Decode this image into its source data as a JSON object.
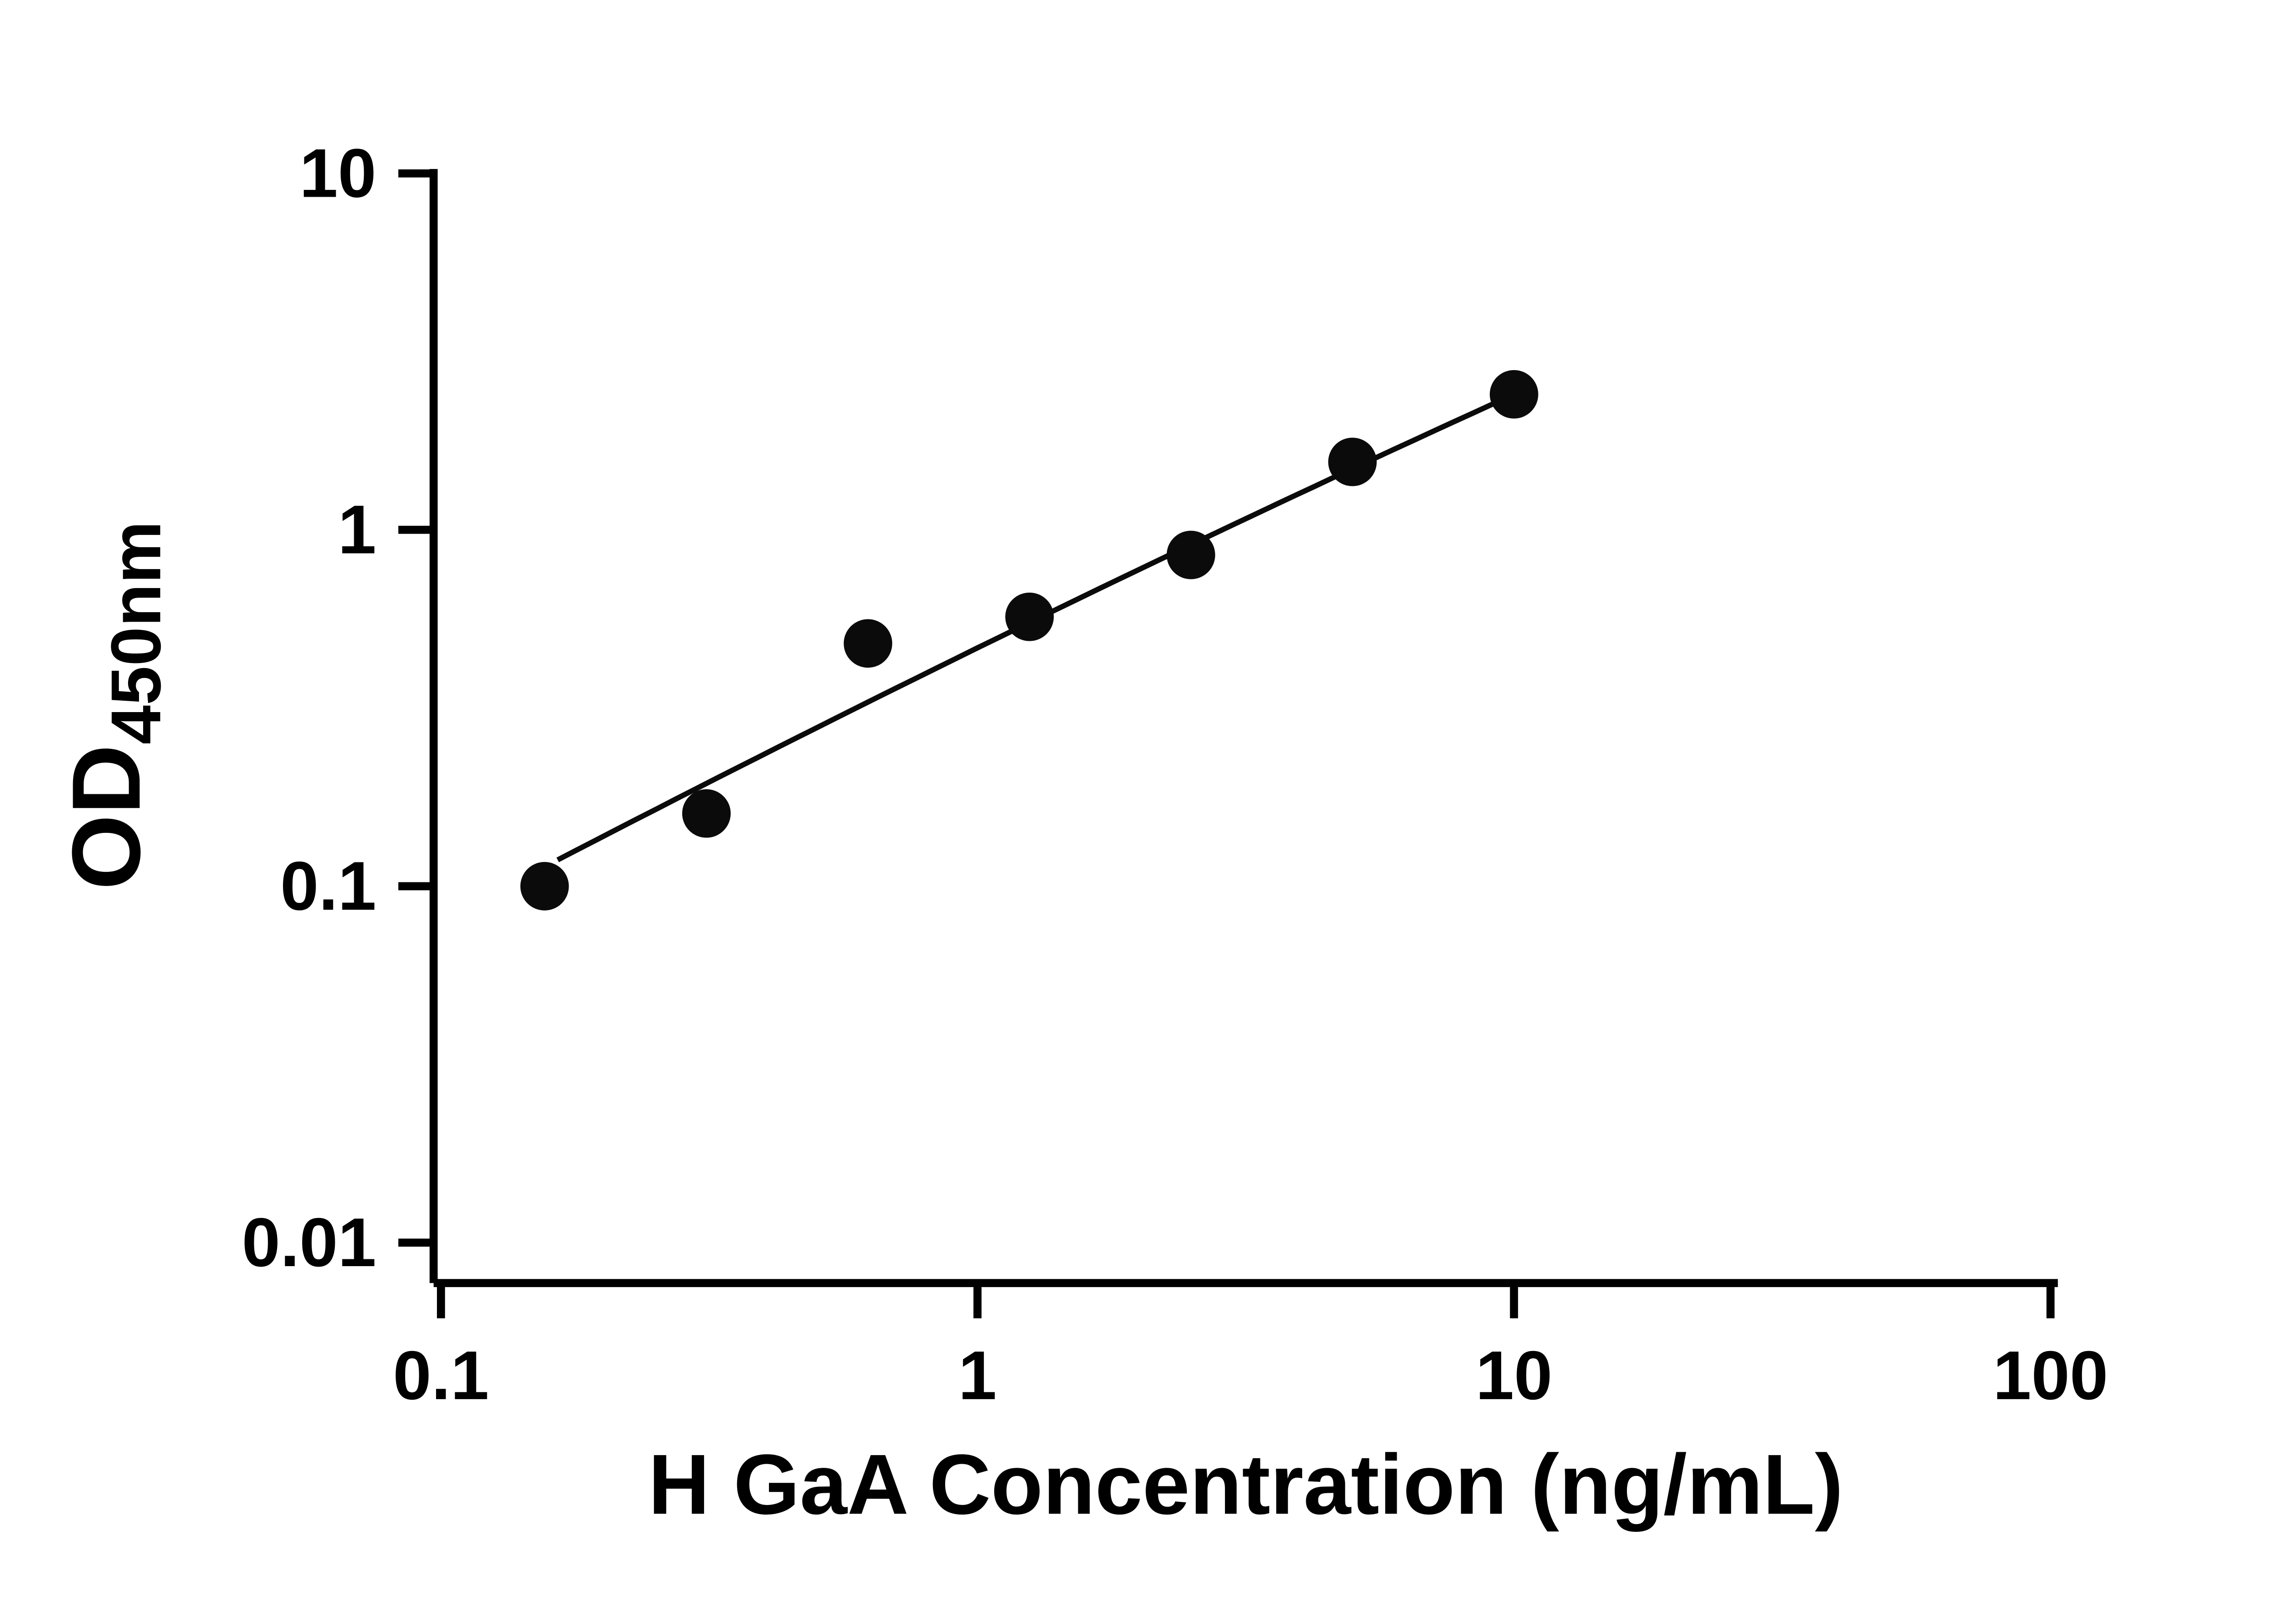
{
  "figure": {
    "background": "#ffffff"
  },
  "chart_data": {
    "type": "scatter",
    "title": "",
    "xlabel": "H GaA Concentration (ng/mL)",
    "ylabel": "OD",
    "ylabel_subscript": "450nm",
    "x_scale": "log",
    "y_scale": "log",
    "xlim": [
      0.1,
      100
    ],
    "ylim": [
      0.01,
      10
    ],
    "x_ticks": [
      0.1,
      1,
      10,
      100
    ],
    "x_tick_labels": [
      "0.1",
      "1",
      "10",
      "100"
    ],
    "y_ticks": [
      0.01,
      0.1,
      1,
      10
    ],
    "y_tick_labels": [
      "0.01",
      "0.1",
      "1",
      "10"
    ],
    "grid": false,
    "legend_position": "none",
    "marker_color": "#0b0b0b",
    "line_color": "#0b0b0b",
    "axis_color": "#000000",
    "points": [
      {
        "x": 0.156,
        "y": 0.1
      },
      {
        "x": 0.3125,
        "y": 0.16
      },
      {
        "x": 0.625,
        "y": 0.48
      },
      {
        "x": 1.25,
        "y": 0.57
      },
      {
        "x": 2.5,
        "y": 0.85
      },
      {
        "x": 5,
        "y": 1.55
      },
      {
        "x": 10,
        "y": 2.4
      }
    ],
    "fit_curve": {
      "model": "log10(y) = a + b*log10(x) + c*log10(x)^2",
      "a": -0.3314,
      "b": 0.7388,
      "c": -0.02744,
      "x_start": 0.165,
      "x_end": 10
    }
  }
}
